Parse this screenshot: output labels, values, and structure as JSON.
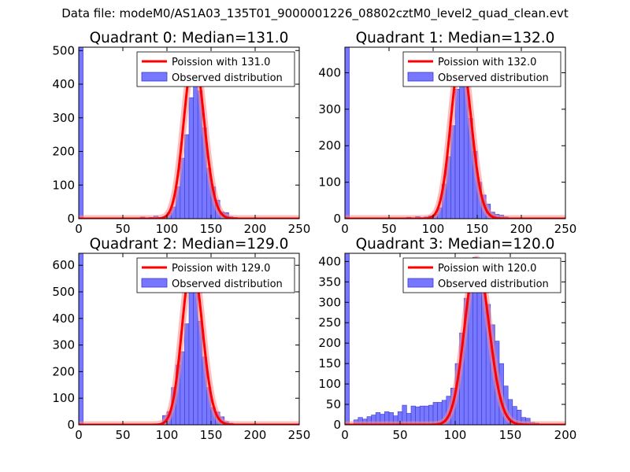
{
  "page_title": "Data file: modeM0/AS1A03_135T01_9000001226_08802cztM0_level2_quad_clean.evt",
  "colors": {
    "hist_fill": "#7777ff",
    "hist_edge": "#3a3acc",
    "poisson_line": "#ff0000",
    "poisson_glow": "#ff8888"
  },
  "chart_data": [
    {
      "type": "bar",
      "title": "Quadrant 0: Median=131.0",
      "xlim": [
        0,
        250
      ],
      "ylim": [
        0,
        510
      ],
      "xticks": [
        0,
        50,
        100,
        150,
        200,
        250
      ],
      "yticks": [
        0,
        100,
        200,
        300,
        400,
        500
      ],
      "legend": {
        "position": "top-right",
        "line_label": "Poission with 131.0",
        "hist_label": "Observed distribution"
      },
      "poisson_mean": 131.0,
      "poisson_peak": 485,
      "bin_width": 5,
      "bins": [
        [
          0,
          510
        ],
        [
          70,
          5
        ],
        [
          80,
          4
        ],
        [
          85,
          8
        ],
        [
          90,
          4
        ],
        [
          95,
          6
        ],
        [
          100,
          18
        ],
        [
          105,
          35
        ],
        [
          110,
          95
        ],
        [
          115,
          180
        ],
        [
          120,
          250
        ],
        [
          125,
          360
        ],
        [
          130,
          445
        ],
        [
          135,
          380
        ],
        [
          140,
          270
        ],
        [
          145,
          150
        ],
        [
          150,
          95
        ],
        [
          155,
          55
        ],
        [
          160,
          20
        ],
        [
          165,
          18
        ],
        [
          170,
          6
        ],
        [
          175,
          4
        ],
        [
          180,
          2
        ]
      ]
    },
    {
      "type": "bar",
      "title": "Quadrant 1: Median=132.0",
      "xlim": [
        0,
        250
      ],
      "ylim": [
        0,
        470
      ],
      "xticks": [
        0,
        50,
        100,
        150,
        200,
        250
      ],
      "yticks": [
        0,
        100,
        200,
        300,
        400
      ],
      "legend": {
        "position": "top-right",
        "line_label": "Poission with 132.0",
        "hist_label": "Observed distribution"
      },
      "poisson_mean": 132.0,
      "poisson_peak": 448,
      "bin_width": 5,
      "bins": [
        [
          0,
          470
        ],
        [
          70,
          4
        ],
        [
          80,
          6
        ],
        [
          85,
          3
        ],
        [
          90,
          5
        ],
        [
          95,
          8
        ],
        [
          100,
          12
        ],
        [
          105,
          30
        ],
        [
          110,
          95
        ],
        [
          115,
          170
        ],
        [
          120,
          255
        ],
        [
          125,
          355
        ],
        [
          130,
          445
        ],
        [
          135,
          390
        ],
        [
          140,
          275
        ],
        [
          145,
          185
        ],
        [
          150,
          100
        ],
        [
          155,
          65
        ],
        [
          160,
          40
        ],
        [
          165,
          18
        ],
        [
          170,
          12
        ],
        [
          175,
          10
        ],
        [
          180,
          5
        ]
      ]
    },
    {
      "type": "bar",
      "title": "Quadrant 2: Median=129.0",
      "xlim": [
        0,
        250
      ],
      "ylim": [
        0,
        645
      ],
      "xticks": [
        0,
        50,
        100,
        150,
        200,
        250
      ],
      "yticks": [
        0,
        100,
        200,
        300,
        400,
        500,
        600
      ],
      "legend": {
        "position": "top-right",
        "line_label": "Poission with 129.0",
        "hist_label": "Observed distribution"
      },
      "poisson_mean": 129.0,
      "poisson_peak": 615,
      "bin_width": 5,
      "bins": [
        [
          0,
          645
        ],
        [
          95,
          35
        ],
        [
          100,
          50
        ],
        [
          105,
          140
        ],
        [
          110,
          225
        ],
        [
          115,
          275
        ],
        [
          120,
          380
        ],
        [
          125,
          600
        ],
        [
          130,
          610
        ],
        [
          135,
          390
        ],
        [
          140,
          255
        ],
        [
          145,
          140
        ],
        [
          150,
          65
        ],
        [
          155,
          48
        ],
        [
          160,
          30
        ],
        [
          165,
          12
        ],
        [
          170,
          6
        ],
        [
          175,
          3
        ],
        [
          180,
          2
        ]
      ]
    },
    {
      "type": "bar",
      "title": "Quadrant 3: Median=120.0",
      "xlim": [
        0,
        200
      ],
      "ylim": [
        0,
        420
      ],
      "xticks": [
        0,
        50,
        100,
        150,
        200
      ],
      "yticks": [
        0,
        50,
        100,
        150,
        200,
        250,
        300,
        350,
        400
      ],
      "legend": {
        "position": "top-right",
        "line_label": "Poission with 120.0",
        "hist_label": "Observed distribution"
      },
      "poisson_mean": 120.0,
      "poisson_peak": 405,
      "bin_width": 4,
      "bins": [
        [
          0,
          420
        ],
        [
          8,
          12
        ],
        [
          12,
          18
        ],
        [
          16,
          14
        ],
        [
          20,
          20
        ],
        [
          24,
          24
        ],
        [
          28,
          30
        ],
        [
          32,
          26
        ],
        [
          36,
          32
        ],
        [
          40,
          30
        ],
        [
          44,
          22
        ],
        [
          48,
          32
        ],
        [
          52,
          48
        ],
        [
          56,
          28
        ],
        [
          60,
          46
        ],
        [
          64,
          44
        ],
        [
          68,
          46
        ],
        [
          72,
          46
        ],
        [
          76,
          48
        ],
        [
          80,
          55
        ],
        [
          84,
          55
        ],
        [
          88,
          60
        ],
        [
          92,
          70
        ],
        [
          96,
          90
        ],
        [
          100,
          150
        ],
        [
          104,
          225
        ],
        [
          108,
          310
        ],
        [
          112,
          400
        ],
        [
          116,
          410
        ],
        [
          120,
          345
        ],
        [
          124,
          325
        ],
        [
          128,
          295
        ],
        [
          132,
          245
        ],
        [
          136,
          205
        ],
        [
          140,
          150
        ],
        [
          144,
          95
        ],
        [
          148,
          62
        ],
        [
          152,
          45
        ],
        [
          156,
          36
        ],
        [
          160,
          18
        ],
        [
          164,
          16
        ],
        [
          168,
          6
        ],
        [
          172,
          4
        ],
        [
          176,
          2
        ]
      ]
    }
  ]
}
